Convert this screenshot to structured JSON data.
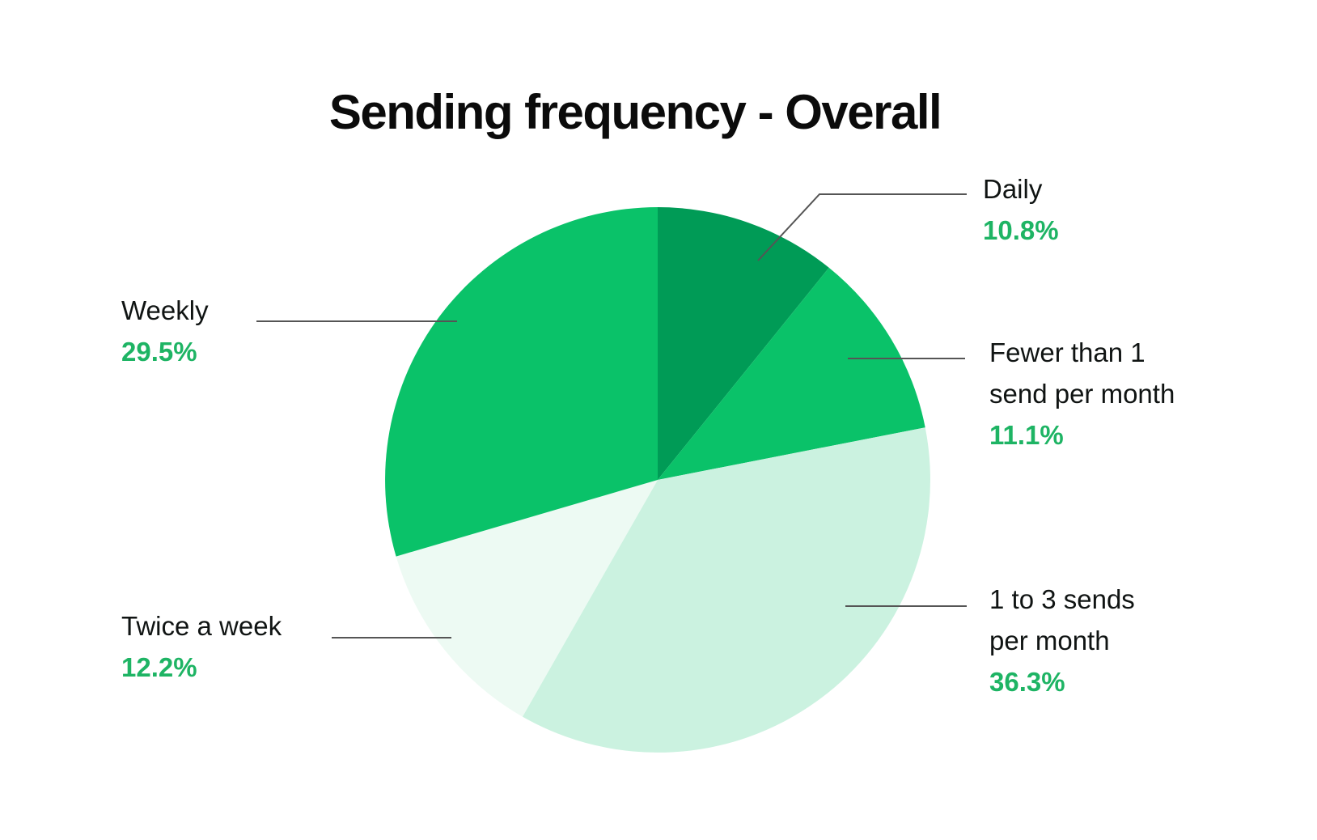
{
  "title": "Sending frequency - Overall",
  "colors": {
    "background": "#ffffff",
    "title_text": "#0b0b0b",
    "label_text": "#101413",
    "pct_text": "#1eb464",
    "leader_line": "#555555",
    "slice_dark_green": "#009b56",
    "slice_bright_green": "#0ac269",
    "slice_light_mint": "#cbf2e0",
    "slice_pale_mint": "#edfaf3"
  },
  "chart_data": {
    "type": "pie",
    "title": "Sending frequency - Overall",
    "start_angle_deg": 0,
    "direction": "clockwise",
    "legend_position": "callout-labels",
    "slices": [
      {
        "label": "Daily",
        "value": 10.8,
        "pct_label": "10.8%",
        "color": "#009b56"
      },
      {
        "label": "Fewer than 1 send per month",
        "value": 11.1,
        "pct_label": "11.1%",
        "color": "#0ac269"
      },
      {
        "label": "1 to 3 sends per month",
        "value": 36.3,
        "pct_label": "36.3%",
        "color": "#cbf2e0"
      },
      {
        "label": "Twice a week",
        "value": 12.2,
        "pct_label": "12.2%",
        "color": "#edfaf3"
      },
      {
        "label": "Weekly",
        "value": 29.5,
        "pct_label": "29.5%",
        "color": "#0ac269"
      }
    ]
  }
}
